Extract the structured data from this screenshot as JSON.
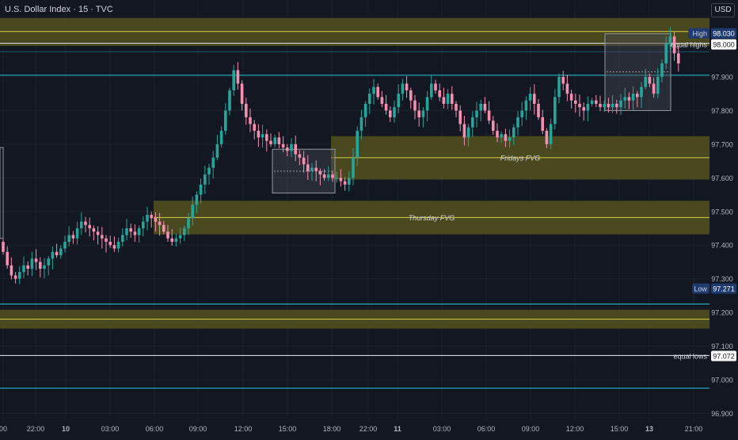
{
  "header": {
    "symbol": "U.S. Dollar Index",
    "interval": "15",
    "exchange": "TVC",
    "currency_button": "USD"
  },
  "colors": {
    "background": "#131722",
    "grid": "#1e222d",
    "up": "#26a69a",
    "down": "#f48fb1",
    "zone_fill": "#54511d",
    "zone_line": "#d8cf4a",
    "teal_line": "#26c6da",
    "white_line": "#d1d4dc",
    "box_fill": "#434651",
    "box_stroke": "#9598a1",
    "label_dark": "#1e3a6e"
  },
  "chart_data": {
    "type": "candlestick",
    "title": "U.S. Dollar Index · 15 · TVC",
    "y_axis": {
      "ticks": [
        "98.000",
        "97.900",
        "97.800",
        "97.700",
        "97.600",
        "97.500",
        "97.400",
        "97.300",
        "97.200",
        "97.100",
        "97.000",
        "96.900"
      ],
      "range": [
        96.89,
        98.15
      ]
    },
    "x_axis": {
      "ticks": [
        {
          "label": "00",
          "bold": false
        },
        {
          "label": "22:00",
          "bold": false
        },
        {
          "label": "10",
          "bold": true
        },
        {
          "label": "03:00",
          "bold": false
        },
        {
          "label": "06:00",
          "bold": false
        },
        {
          "label": "09:00",
          "bold": false
        },
        {
          "label": "12:00",
          "bold": false
        },
        {
          "label": "15:00",
          "bold": false
        },
        {
          "label": "18:00",
          "bold": false
        },
        {
          "label": "22:00",
          "bold": false
        },
        {
          "label": "11",
          "bold": true
        },
        {
          "label": "03:00",
          "bold": false
        },
        {
          "label": "06:00",
          "bold": false
        },
        {
          "label": "09:00",
          "bold": false
        },
        {
          "label": "12:00",
          "bold": false
        },
        {
          "label": "15:00",
          "bold": false
        },
        {
          "label": "13",
          "bold": true
        },
        {
          "label": "21:00",
          "bold": false
        }
      ]
    },
    "price_labels": [
      {
        "name": "High",
        "value": "98.030"
      },
      {
        "name": "equal highs",
        "value": "98.000"
      },
      {
        "name": "Low",
        "value": "97.271"
      },
      {
        "name": "equal lows",
        "value": "97.072"
      }
    ],
    "zones": [
      {
        "label": "",
        "top": 98.075,
        "bottom": 97.992,
        "mid": 98.035
      },
      {
        "label": "Fridays FVG",
        "top": 97.724,
        "bottom": 97.595,
        "mid": 97.66
      },
      {
        "label": "Thursday FVG",
        "top": 97.532,
        "bottom": 97.432,
        "mid": 97.482
      },
      {
        "label": "",
        "top": 97.208,
        "bottom": 97.152,
        "mid": 97.18
      }
    ],
    "horizontal_lines": [
      {
        "value": 98.0,
        "label": "equal highs"
      },
      {
        "value": 97.072,
        "label": "equal lows"
      }
    ],
    "closes": [
      97.38,
      97.34,
      97.31,
      97.3,
      97.32,
      97.34,
      97.33,
      97.36,
      97.35,
      97.33,
      97.34,
      97.36,
      97.38,
      97.37,
      97.39,
      97.41,
      97.43,
      97.42,
      97.45,
      97.47,
      97.46,
      97.45,
      97.44,
      97.43,
      97.42,
      97.41,
      97.4,
      97.39,
      97.41,
      97.43,
      97.45,
      97.44,
      97.43,
      97.45,
      97.47,
      97.49,
      97.48,
      97.47,
      97.46,
      97.44,
      97.42,
      97.41,
      97.42,
      97.43,
      97.45,
      97.48,
      97.52,
      97.55,
      97.58,
      97.61,
      97.63,
      97.66,
      97.7,
      97.74,
      97.8,
      97.86,
      97.92,
      97.88,
      97.82,
      97.78,
      97.76,
      97.74,
      97.72,
      97.73,
      97.71,
      97.7,
      97.72,
      97.7,
      97.69,
      97.68,
      97.7,
      97.67,
      97.66,
      97.64,
      97.62,
      97.63,
      97.62,
      97.61,
      97.6,
      97.61,
      97.6,
      97.6,
      97.59,
      97.58,
      97.6,
      97.66,
      97.74,
      97.78,
      97.82,
      97.85,
      97.87,
      97.84,
      97.82,
      97.8,
      97.78,
      97.81,
      97.85,
      97.88,
      97.86,
      97.83,
      97.8,
      97.78,
      97.8,
      97.84,
      97.88,
      97.86,
      97.84,
      97.82,
      97.85,
      97.82,
      97.8,
      97.76,
      97.72,
      97.75,
      97.78,
      97.8,
      97.82,
      97.8,
      97.77,
      97.74,
      97.72,
      97.73,
      97.71,
      97.72,
      97.75,
      97.78,
      97.8,
      97.83,
      97.85,
      97.82,
      97.78,
      97.74,
      97.7,
      97.76,
      97.84,
      97.9,
      97.88,
      97.85,
      97.83,
      97.82,
      97.81,
      97.8,
      97.82,
      97.83,
      97.82,
      97.81,
      97.82,
      97.81,
      97.82,
      97.81,
      97.83,
      97.84,
      97.83,
      97.85,
      97.84,
      97.87,
      97.9,
      97.88,
      97.85,
      97.9,
      97.94,
      98.0,
      98.02,
      97.97,
      97.94
    ]
  }
}
